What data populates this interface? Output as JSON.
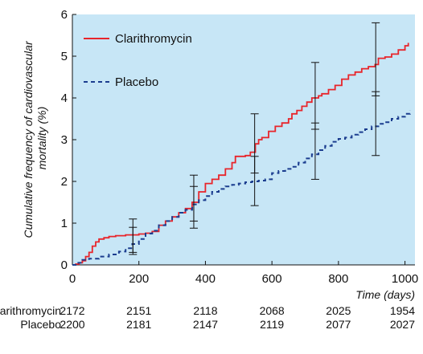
{
  "chart_data": {
    "type": "line",
    "title": "",
    "xlabel": "Time (days)",
    "ylabel": "Cumulative frequency of cardiovascular mortality (%)",
    "xlim": [
      0,
      1030
    ],
    "ylim": [
      0,
      6
    ],
    "x_ticks": [
      "0",
      "200",
      "400",
      "600",
      "800",
      "1000"
    ],
    "y_ticks": [
      "0",
      "1",
      "2",
      "3",
      "4",
      "5",
      "6"
    ],
    "grid": false,
    "legend_position": "top-left",
    "background_color": "#c7e6f6",
    "series": [
      {
        "name": "Clarithromycin",
        "color": "#e8252b",
        "style": "solid",
        "points": [
          [
            0,
            0
          ],
          [
            10,
            0.02
          ],
          [
            20,
            0.05
          ],
          [
            30,
            0.1
          ],
          [
            40,
            0.2
          ],
          [
            50,
            0.3
          ],
          [
            60,
            0.45
          ],
          [
            70,
            0.55
          ],
          [
            80,
            0.62
          ],
          [
            95,
            0.65
          ],
          [
            110,
            0.68
          ],
          [
            130,
            0.7
          ],
          [
            160,
            0.72
          ],
          [
            180,
            0.72
          ],
          [
            200,
            0.74
          ],
          [
            220,
            0.76
          ],
          [
            240,
            0.8
          ],
          [
            260,
            0.95
          ],
          [
            280,
            1.05
          ],
          [
            300,
            1.15
          ],
          [
            320,
            1.25
          ],
          [
            340,
            1.35
          ],
          [
            360,
            1.5
          ],
          [
            380,
            1.75
          ],
          [
            400,
            1.95
          ],
          [
            420,
            2.05
          ],
          [
            440,
            2.15
          ],
          [
            460,
            2.3
          ],
          [
            480,
            2.45
          ],
          [
            490,
            2.6
          ],
          [
            520,
            2.62
          ],
          [
            535,
            2.7
          ],
          [
            550,
            2.9
          ],
          [
            560,
            3.0
          ],
          [
            570,
            3.05
          ],
          [
            590,
            3.2
          ],
          [
            610,
            3.32
          ],
          [
            630,
            3.4
          ],
          [
            650,
            3.5
          ],
          [
            660,
            3.62
          ],
          [
            675,
            3.7
          ],
          [
            690,
            3.8
          ],
          [
            705,
            3.9
          ],
          [
            720,
            4.0
          ],
          [
            740,
            4.05
          ],
          [
            750,
            4.1
          ],
          [
            770,
            4.2
          ],
          [
            790,
            4.3
          ],
          [
            810,
            4.45
          ],
          [
            830,
            4.55
          ],
          [
            850,
            4.62
          ],
          [
            870,
            4.7
          ],
          [
            890,
            4.75
          ],
          [
            910,
            4.8
          ],
          [
            920,
            4.95
          ],
          [
            940,
            4.98
          ],
          [
            960,
            5.05
          ],
          [
            980,
            5.15
          ],
          [
            1000,
            5.25
          ],
          [
            1010,
            5.32
          ]
        ]
      },
      {
        "name": "Placebo",
        "color": "#1b3d8f",
        "style": "dashed",
        "points": [
          [
            0,
            0
          ],
          [
            15,
            0.05
          ],
          [
            30,
            0.12
          ],
          [
            50,
            0.15
          ],
          [
            80,
            0.2
          ],
          [
            110,
            0.25
          ],
          [
            140,
            0.32
          ],
          [
            160,
            0.4
          ],
          [
            180,
            0.5
          ],
          [
            200,
            0.62
          ],
          [
            220,
            0.75
          ],
          [
            240,
            0.82
          ],
          [
            260,
            0.95
          ],
          [
            280,
            1.05
          ],
          [
            300,
            1.15
          ],
          [
            320,
            1.25
          ],
          [
            340,
            1.32
          ],
          [
            360,
            1.45
          ],
          [
            380,
            1.55
          ],
          [
            400,
            1.65
          ],
          [
            420,
            1.75
          ],
          [
            440,
            1.82
          ],
          [
            460,
            1.88
          ],
          [
            480,
            1.92
          ],
          [
            500,
            1.95
          ],
          [
            520,
            1.98
          ],
          [
            540,
            2.0
          ],
          [
            560,
            2.02
          ],
          [
            580,
            2.05
          ],
          [
            600,
            2.2
          ],
          [
            620,
            2.25
          ],
          [
            640,
            2.3
          ],
          [
            660,
            2.35
          ],
          [
            680,
            2.45
          ],
          [
            700,
            2.55
          ],
          [
            720,
            2.65
          ],
          [
            740,
            2.75
          ],
          [
            760,
            2.85
          ],
          [
            780,
            2.95
          ],
          [
            800,
            3.02
          ],
          [
            820,
            3.05
          ],
          [
            840,
            3.12
          ],
          [
            860,
            3.18
          ],
          [
            880,
            3.25
          ],
          [
            900,
            3.32
          ],
          [
            920,
            3.38
          ],
          [
            940,
            3.42
          ],
          [
            960,
            3.5
          ],
          [
            980,
            3.55
          ],
          [
            1000,
            3.62
          ],
          [
            1015,
            3.7
          ]
        ]
      }
    ],
    "error_bars": [
      {
        "series": "Clarithromycin",
        "x": 182,
        "y": 0.72,
        "low": 0.3,
        "high": 1.1
      },
      {
        "series": "Placebo",
        "x": 182,
        "y": 0.55,
        "low": 0.25,
        "high": 0.9
      },
      {
        "series": "Clarithromycin",
        "x": 365,
        "y": 1.6,
        "low": 1.05,
        "high": 2.15
      },
      {
        "series": "Placebo",
        "x": 365,
        "y": 1.4,
        "low": 0.88,
        "high": 1.88
      },
      {
        "series": "Clarithromycin",
        "x": 548,
        "y": 2.95,
        "low": 2.2,
        "high": 3.62
      },
      {
        "series": "Placebo",
        "x": 548,
        "y": 2.02,
        "low": 1.42,
        "high": 2.6
      },
      {
        "series": "Clarithromycin",
        "x": 730,
        "y": 4.05,
        "low": 3.25,
        "high": 4.85
      },
      {
        "series": "Placebo",
        "x": 730,
        "y": 2.75,
        "low": 2.05,
        "high": 3.4
      },
      {
        "series": "Clarithromycin",
        "x": 912,
        "y": 4.9,
        "low": 4.05,
        "high": 5.8
      },
      {
        "series": "Placebo",
        "x": 912,
        "y": 3.38,
        "low": 2.62,
        "high": 4.15
      }
    ],
    "number_at_risk": {
      "rows": [
        {
          "label": "Clarithromycin",
          "values": [
            "2172",
            "2151",
            "2118",
            "2068",
            "2025",
            "1954"
          ]
        },
        {
          "label": "Placebo",
          "values": [
            "2200",
            "2181",
            "2147",
            "2119",
            "2077",
            "2027"
          ]
        }
      ]
    }
  }
}
